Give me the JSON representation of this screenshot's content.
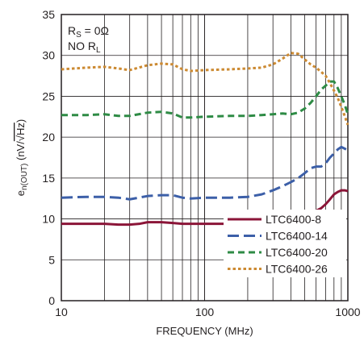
{
  "chart_data": {
    "type": "line",
    "xscale": "log",
    "xlim": [
      10,
      1000
    ],
    "ylim": [
      0,
      35
    ],
    "xticks": [
      10,
      100,
      1000
    ],
    "xtick_labels": [
      "10",
      "100",
      "1000"
    ],
    "yticks": [
      0,
      5,
      10,
      15,
      20,
      25,
      30,
      35
    ],
    "ytick_labels": [
      "0",
      "5",
      "10",
      "15",
      "20",
      "25",
      "30",
      "35"
    ],
    "grid": true,
    "xlabel": "FREQUENCY (MHz)",
    "ylabel": {
      "pre": "e",
      "sub": "n(OUT)",
      "mid": " (nV/",
      "root": "√Hz",
      "post": ")"
    },
    "annotations": {
      "line1": {
        "pre": "R",
        "sub": "S",
        "post": " = 0Ω"
      },
      "line2": {
        "pre": "NO R",
        "sub": "L",
        "post": ""
      }
    },
    "legend_position": "bottom-right",
    "series": [
      {
        "name": "LTC6400-8",
        "color": "#8b1538",
        "dash": "solid",
        "x": [
          10,
          15,
          20,
          25,
          30,
          35,
          40,
          50,
          60,
          70,
          80,
          100,
          150,
          200,
          250,
          300,
          350,
          400,
          450,
          500,
          550,
          600,
          650,
          700,
          750,
          800,
          850,
          900,
          950,
          1000
        ],
        "y": [
          9.4,
          9.4,
          9.4,
          9.3,
          9.3,
          9.4,
          9.6,
          9.6,
          9.5,
          9.4,
          9.4,
          9.4,
          9.4,
          9.5,
          9.7,
          10.0,
          10.4,
          10.6,
          10.7,
          10.7,
          10.8,
          11.0,
          11.3,
          11.8,
          12.4,
          13.0,
          13.3,
          13.5,
          13.5,
          13.4
        ]
      },
      {
        "name": "LTC6400-14",
        "color": "#3c5fa8",
        "dash": "long-dash",
        "x": [
          10,
          15,
          20,
          25,
          30,
          40,
          50,
          60,
          70,
          80,
          100,
          150,
          200,
          250,
          300,
          350,
          400,
          450,
          500,
          550,
          600,
          650,
          700,
          750,
          800,
          850,
          900,
          950,
          1000
        ],
        "y": [
          12.6,
          12.7,
          12.7,
          12.6,
          12.4,
          12.8,
          12.9,
          12.9,
          12.6,
          12.5,
          12.6,
          12.6,
          12.7,
          13.0,
          13.5,
          14.0,
          14.5,
          15.0,
          15.6,
          16.2,
          16.4,
          16.4,
          16.8,
          17.5,
          18.0,
          18.5,
          18.8,
          18.6,
          18.4
        ]
      },
      {
        "name": "LTC6400-20",
        "color": "#2e8b45",
        "dash": "dash",
        "x": [
          10,
          15,
          20,
          25,
          30,
          40,
          50,
          60,
          70,
          80,
          100,
          150,
          200,
          250,
          300,
          350,
          400,
          450,
          500,
          550,
          600,
          650,
          700,
          750,
          800,
          850,
          900,
          950,
          1000
        ],
        "y": [
          22.7,
          22.7,
          22.8,
          22.6,
          22.6,
          23.0,
          23.1,
          22.9,
          22.4,
          22.4,
          22.5,
          22.6,
          22.6,
          22.7,
          22.8,
          22.9,
          22.8,
          23.0,
          23.5,
          24.2,
          25.0,
          25.8,
          26.3,
          26.8,
          26.8,
          26.0,
          25.0,
          24.0,
          22.8
        ]
      },
      {
        "name": "LTC6400-26",
        "color": "#cc8a32",
        "dash": "dot",
        "x": [
          10,
          15,
          20,
          25,
          30,
          40,
          50,
          60,
          70,
          80,
          100,
          150,
          200,
          250,
          300,
          350,
          400,
          450,
          500,
          550,
          600,
          650,
          700,
          750,
          800,
          850,
          900,
          950,
          1000
        ],
        "y": [
          28.3,
          28.5,
          28.6,
          28.4,
          28.2,
          28.8,
          29.0,
          28.9,
          28.3,
          28.1,
          28.2,
          28.3,
          28.4,
          28.5,
          28.9,
          29.6,
          30.3,
          30.2,
          29.5,
          28.9,
          28.5,
          28.0,
          27.5,
          26.6,
          25.7,
          24.8,
          23.7,
          22.6,
          21.5
        ]
      }
    ]
  }
}
